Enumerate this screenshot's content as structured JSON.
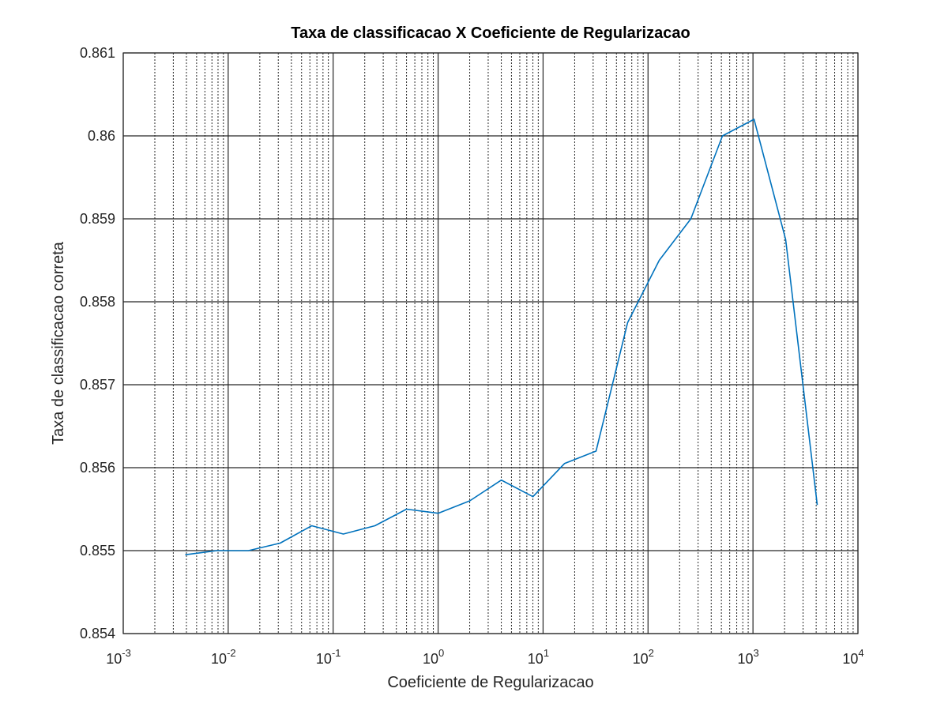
{
  "chart_data": {
    "type": "line",
    "title": "Taxa de classificacao X Coeficiente de Regularizacao",
    "xlabel": "Coeficiente de Regularizacao",
    "ylabel": "Taxa de classificacao correta",
    "x_scale": "log",
    "xlim": [
      0.001,
      10000
    ],
    "ylim": [
      0.854,
      0.861
    ],
    "grid": true,
    "grid_minor_x": true,
    "x_ticks": [
      {
        "base": "10",
        "exp": "-3"
      },
      {
        "base": "10",
        "exp": "-2"
      },
      {
        "base": "10",
        "exp": "-1"
      },
      {
        "base": "10",
        "exp": "0"
      },
      {
        "base": "10",
        "exp": "1"
      },
      {
        "base": "10",
        "exp": "2"
      },
      {
        "base": "10",
        "exp": "3"
      },
      {
        "base": "10",
        "exp": "4"
      }
    ],
    "y_ticks": [
      "0.854",
      "0.855",
      "0.856",
      "0.857",
      "0.858",
      "0.859",
      "0.86",
      "0.861"
    ],
    "series": [
      {
        "color": "#0072bd",
        "x": [
          0.0039,
          0.0078,
          0.0156,
          0.03125,
          0.0625,
          0.125,
          0.25,
          0.5,
          1,
          2,
          4,
          8,
          16,
          32,
          64,
          128,
          256,
          512,
          1024,
          2048,
          4096
        ],
        "y": [
          0.85495,
          0.855,
          0.855,
          0.85509,
          0.8553,
          0.8552,
          0.8553,
          0.8555,
          0.85545,
          0.8556,
          0.85585,
          0.85565,
          0.85605,
          0.8562,
          0.85775,
          0.8585,
          0.859,
          0.86,
          0.8602,
          0.85875,
          0.85555
        ]
      }
    ]
  }
}
